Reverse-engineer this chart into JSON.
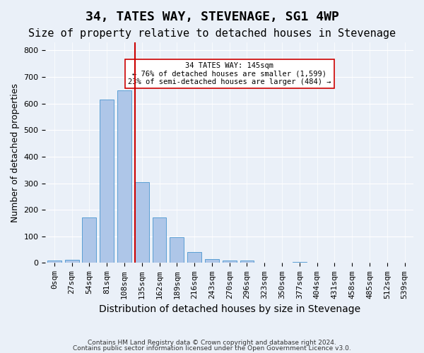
{
  "title": "34, TATES WAY, STEVENAGE, SG1 4WP",
  "subtitle": "Size of property relative to detached houses in Stevenage",
  "xlabel": "Distribution of detached houses by size in Stevenage",
  "ylabel": "Number of detached properties",
  "categories": [
    "0sqm",
    "27sqm",
    "54sqm",
    "81sqm",
    "108sqm",
    "135sqm",
    "162sqm",
    "189sqm",
    "216sqm",
    "243sqm",
    "270sqm",
    "296sqm",
    "323sqm",
    "350sqm",
    "377sqm",
    "404sqm",
    "431sqm",
    "458sqm",
    "485sqm",
    "512sqm",
    "539sqm"
  ],
  "values": [
    8,
    13,
    170,
    615,
    650,
    305,
    170,
    97,
    42,
    15,
    10,
    8,
    0,
    0,
    5,
    0,
    0,
    0,
    0,
    0,
    0
  ],
  "bar_color": "#aec6e8",
  "bar_edge_color": "#5a9fd4",
  "vline_x": 5,
  "vline_color": "#cc0000",
  "annotation_text": "34 TATES WAY: 145sqm\n← 76% of detached houses are smaller (1,599)\n23% of semi-detached houses are larger (484) →",
  "annotation_box_color": "#ffffff",
  "annotation_box_edge_color": "#cc0000",
  "ylim": [
    0,
    830
  ],
  "yticks": [
    0,
    100,
    200,
    300,
    400,
    500,
    600,
    700,
    800
  ],
  "background_color": "#eaf0f8",
  "plot_bg_color": "#eaf0f8",
  "grid_color": "#ffffff",
  "title_fontsize": 13,
  "subtitle_fontsize": 11,
  "xlabel_fontsize": 10,
  "ylabel_fontsize": 9,
  "tick_fontsize": 8,
  "footer1": "Contains HM Land Registry data © Crown copyright and database right 2024.",
  "footer2": "Contains public sector information licensed under the Open Government Licence v3.0."
}
